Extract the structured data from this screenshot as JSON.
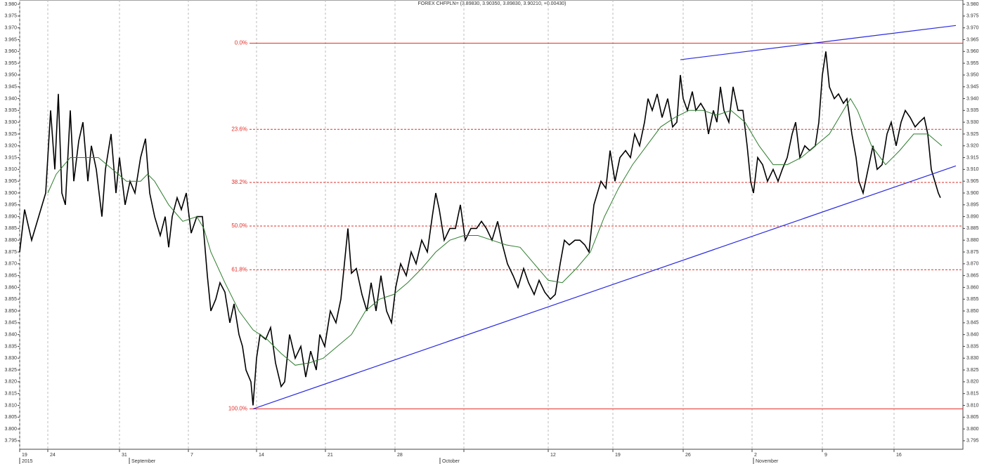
{
  "chart_data": {
    "type": "line",
    "title": "FOREX CHFPLN= (3.89830, 3.90350, 3.89830, 3.90210, +0.00430)",
    "xlim": [
      0,
      67.1
    ],
    "ylim": [
      3.7914,
      3.9818
    ],
    "grid": "x",
    "xticks": [
      {
        "value": 0,
        "label": "19"
      },
      {
        "value": 2,
        "label": "24"
      },
      {
        "value": 7.1,
        "label": "31"
      },
      {
        "value": 12,
        "label": "7"
      },
      {
        "value": 16.85,
        "label": "14"
      },
      {
        "value": 21.75,
        "label": "21"
      },
      {
        "value": 26.7,
        "label": "28"
      },
      {
        "value": 31.6,
        "label": null
      },
      {
        "value": 37.6,
        "label": "12"
      },
      {
        "value": 42.2,
        "label": "19"
      },
      {
        "value": 47.2,
        "label": "26"
      },
      {
        "value": 52.1,
        "label": "2"
      },
      {
        "value": 57.1,
        "label": "9"
      },
      {
        "value": 62.2,
        "label": "16"
      }
    ],
    "xticks_secondary": [
      {
        "value": 0,
        "label": "2015"
      },
      {
        "value": 7.8,
        "label": "September"
      },
      {
        "value": 29.9,
        "label": "October"
      },
      {
        "value": 52.2,
        "label": "November"
      }
    ],
    "yticks": [
      3.795,
      {
        "value": 3.8,
        "label": "3.800"
      },
      3.805,
      {
        "value": 3.81,
        "label": "3.810"
      },
      3.815,
      {
        "value": 3.82,
        "label": "3.820"
      },
      3.825,
      {
        "value": 3.83,
        "label": "3.830"
      },
      3.835,
      {
        "value": 3.84,
        "label": "3.840"
      },
      3.845,
      {
        "value": 3.85,
        "label": "3.850"
      },
      3.855,
      {
        "value": 3.86,
        "label": "3.860"
      },
      3.865,
      {
        "value": 3.87,
        "label": "3.870"
      },
      3.875,
      {
        "value": 3.88,
        "label": "3.880"
      },
      3.885,
      {
        "value": 3.89,
        "label": "3.890"
      },
      3.895,
      {
        "value": 3.9,
        "label": "3.900"
      },
      3.905,
      {
        "value": 3.91,
        "label": "3.910"
      },
      3.915,
      {
        "value": 3.92,
        "label": "3.920"
      },
      3.925,
      {
        "value": 3.93,
        "label": "3.930"
      },
      3.935,
      {
        "value": 3.94,
        "label": "3.940"
      },
      3.945,
      {
        "value": 3.95,
        "label": "3.950"
      },
      3.955,
      {
        "value": 3.96,
        "label": "3.960"
      },
      3.965,
      {
        "value": 3.97,
        "label": "3.970"
      },
      3.975,
      {
        "value": 3.98,
        "label": "3.980"
      }
    ],
    "series": [
      {
        "color": "#000000",
        "x": [
          0,
          0.35,
          0.85,
          1.35,
          1.85,
          2.2,
          2.5,
          2.75,
          3,
          3.25,
          3.6,
          3.85,
          4.2,
          4.5,
          4.85,
          5.1,
          5.45,
          5.85,
          6.1,
          6.5,
          6.85,
          7.1,
          7.5,
          7.85,
          8.2,
          8.6,
          8.95,
          9.25,
          9.6,
          10,
          10.35,
          10.6,
          10.85,
          11.2,
          11.5,
          11.85,
          12.2,
          12.6,
          13,
          13.35,
          13.6,
          13.95,
          14.25,
          14.6,
          14.95,
          15.25,
          15.6,
          15.85,
          16.1,
          16.45,
          16.6,
          16.85,
          17.1,
          17.5,
          17.85,
          18.2,
          18.6,
          18.85,
          19.2,
          19.6,
          20,
          20.35,
          20.7,
          21.1,
          21.35,
          21.7,
          22.1,
          22.5,
          22.85,
          23.1,
          23.35,
          23.6,
          23.95,
          24.35,
          24.7,
          25,
          25.35,
          25.7,
          26.1,
          26.45,
          26.75,
          27.1,
          27.5,
          27.85,
          28.2,
          28.6,
          29,
          29.35,
          29.6,
          29.85,
          30.2,
          30.6,
          31,
          31.35,
          31.7,
          32.1,
          32.5,
          32.85,
          33.2,
          33.6,
          34,
          34.35,
          34.7,
          35.1,
          35.45,
          35.85,
          36.2,
          36.6,
          36.95,
          37.35,
          37.75,
          38.1,
          38.45,
          38.75,
          39.1,
          39.5,
          39.85,
          40.2,
          40.5,
          40.85,
          41.1,
          41.35,
          41.7,
          42,
          42.35,
          42.7,
          43.1,
          43.45,
          43.75,
          44.1,
          44.45,
          44.7,
          45,
          45.35,
          45.7,
          46.1,
          46.45,
          46.75,
          47,
          47.2,
          47.5,
          47.85,
          48.1,
          48.45,
          48.75,
          49,
          49.35,
          49.6,
          49.85,
          50.1,
          50.45,
          50.75,
          51.1,
          51.45,
          51.75,
          52,
          52.2,
          52.5,
          52.85,
          53.2,
          53.6,
          53.95,
          54.25,
          54.6,
          54.95,
          55.2,
          55.5,
          55.85,
          56.2,
          56.6,
          56.85,
          57.1,
          57.35,
          57.6,
          57.95,
          58.25,
          58.6,
          58.85,
          59.2,
          59.5,
          59.7,
          60,
          60.35,
          60.7,
          61,
          61.35,
          61.7,
          62,
          62.35,
          62.7,
          63,
          63.35,
          63.7,
          64,
          64.35,
          64.6,
          64.85,
          65.1,
          65.35,
          65.5
        ],
        "values": [
          3.875,
          3.893,
          3.88,
          3.89,
          3.9,
          3.935,
          3.91,
          3.942,
          3.9,
          3.895,
          3.935,
          3.905,
          3.922,
          3.93,
          3.905,
          3.92,
          3.91,
          3.89,
          3.91,
          3.925,
          3.9,
          3.915,
          3.895,
          3.905,
          3.9,
          3.915,
          3.923,
          3.9,
          3.89,
          3.882,
          3.89,
          3.877,
          3.89,
          3.898,
          3.893,
          3.9,
          3.883,
          3.89,
          3.89,
          3.865,
          3.85,
          3.855,
          3.862,
          3.858,
          3.845,
          3.853,
          3.84,
          3.835,
          3.825,
          3.82,
          3.81,
          3.83,
          3.84,
          3.838,
          3.843,
          3.828,
          3.818,
          3.82,
          3.84,
          3.83,
          3.835,
          3.822,
          3.833,
          3.825,
          3.84,
          3.835,
          3.85,
          3.845,
          3.855,
          3.87,
          3.885,
          3.866,
          3.868,
          3.857,
          3.85,
          3.862,
          3.85,
          3.865,
          3.85,
          3.845,
          3.86,
          3.87,
          3.865,
          3.875,
          3.87,
          3.88,
          3.875,
          3.89,
          3.9,
          3.893,
          3.88,
          3.885,
          3.885,
          3.895,
          3.88,
          3.885,
          3.885,
          3.888,
          3.885,
          3.88,
          3.888,
          3.878,
          3.87,
          3.865,
          3.86,
          3.868,
          3.862,
          3.857,
          3.863,
          3.858,
          3.855,
          3.857,
          3.87,
          3.88,
          3.878,
          3.88,
          3.88,
          3.878,
          3.875,
          3.895,
          3.9,
          3.905,
          3.902,
          3.918,
          3.905,
          3.915,
          3.918,
          3.915,
          3.925,
          3.92,
          3.93,
          3.94,
          3.935,
          3.942,
          3.932,
          3.94,
          3.928,
          3.93,
          3.95,
          3.94,
          3.935,
          3.943,
          3.935,
          3.938,
          3.935,
          3.925,
          3.935,
          3.93,
          3.945,
          3.935,
          3.93,
          3.945,
          3.935,
          3.935,
          3.92,
          3.905,
          3.9,
          3.915,
          3.912,
          3.905,
          3.91,
          3.905,
          3.91,
          3.915,
          3.925,
          3.93,
          3.915,
          3.92,
          3.918,
          3.92,
          3.93,
          3.95,
          3.96,
          3.945,
          3.94,
          3.942,
          3.938,
          3.94,
          3.925,
          3.915,
          3.905,
          3.9,
          3.91,
          3.92,
          3.91,
          3.912,
          3.925,
          3.93,
          3.92,
          3.93,
          3.935,
          3.932,
          3.928,
          3.93,
          3.932,
          3.925,
          3.91,
          3.905,
          3.9,
          3.898
        ]
      },
      {
        "color": "#2e7d2e",
        "x": [
          2,
          2.6,
          3.6,
          4.6,
          5.6,
          6.6,
          7.6,
          8.6,
          9.1,
          9.6,
          10.6,
          11.6,
          12.6,
          13.1,
          13.6,
          14.6,
          15.6,
          16.6,
          17.6,
          18.6,
          19.6,
          20.6,
          21.6,
          22.6,
          23.6,
          24.6,
          25.6,
          26.6,
          27.6,
          28.6,
          29.6,
          30.6,
          31.6,
          32.6,
          33.6,
          34.6,
          35.6,
          36.6,
          37.6,
          38.6,
          39.6,
          40.6,
          41.6,
          42.6,
          43.6,
          44.6,
          45.6,
          46.6,
          47.6,
          48.6,
          49.6,
          50.6,
          51.6,
          52.6,
          53.6,
          54.6,
          55.6,
          56.6,
          57.6,
          58.6,
          59.1,
          59.6,
          60.6,
          61.6,
          62.6,
          63.6,
          64.6,
          65.6
        ],
        "values": [
          3.9,
          3.908,
          3.915,
          3.915,
          3.915,
          3.91,
          3.905,
          3.905,
          3.908,
          3.905,
          3.895,
          3.888,
          3.89,
          3.885,
          3.875,
          3.862,
          3.85,
          3.842,
          3.838,
          3.832,
          3.827,
          3.828,
          3.83,
          3.835,
          3.84,
          3.85,
          3.855,
          3.857,
          3.862,
          3.868,
          3.875,
          3.88,
          3.882,
          3.882,
          3.88,
          3.878,
          3.877,
          3.87,
          3.863,
          3.862,
          3.868,
          3.875,
          3.89,
          3.902,
          3.912,
          3.92,
          3.928,
          3.932,
          3.935,
          3.935,
          3.933,
          3.935,
          3.93,
          3.92,
          3.912,
          3.912,
          3.915,
          3.92,
          3.925,
          3.935,
          3.94,
          3.935,
          3.92,
          3.912,
          3.918,
          3.925,
          3.925,
          3.92
        ]
      }
    ],
    "fib_levels": [
      {
        "name": "0.0%",
        "value": 3.9635,
        "x": [
          16.35,
          67.1
        ]
      },
      {
        "name": "23.6%",
        "value": 3.927,
        "x": [
          16.35,
          67.1
        ]
      },
      {
        "name": "38.2%",
        "value": 3.9045,
        "x": [
          16.35,
          67.1
        ]
      },
      {
        "name": "50.0%",
        "value": 3.886,
        "x": [
          16.35,
          67.1
        ]
      },
      {
        "name": "61.8%",
        "value": 3.8675,
        "x": [
          16.35,
          67.1
        ]
      },
      {
        "name": "100.0%",
        "value": 3.8085,
        "x": [
          16.35,
          67.1
        ]
      }
    ],
    "fib_color": "#e0302a",
    "trend_lines": [
      {
        "color": "#2a2ae0",
        "x": [
          16.6,
          66.6
        ],
        "y": [
          3.8085,
          3.9115
        ]
      },
      {
        "color": "#2a2ae0",
        "x": [
          47,
          66.6
        ],
        "y": [
          3.9565,
          3.971
        ]
      }
    ]
  }
}
